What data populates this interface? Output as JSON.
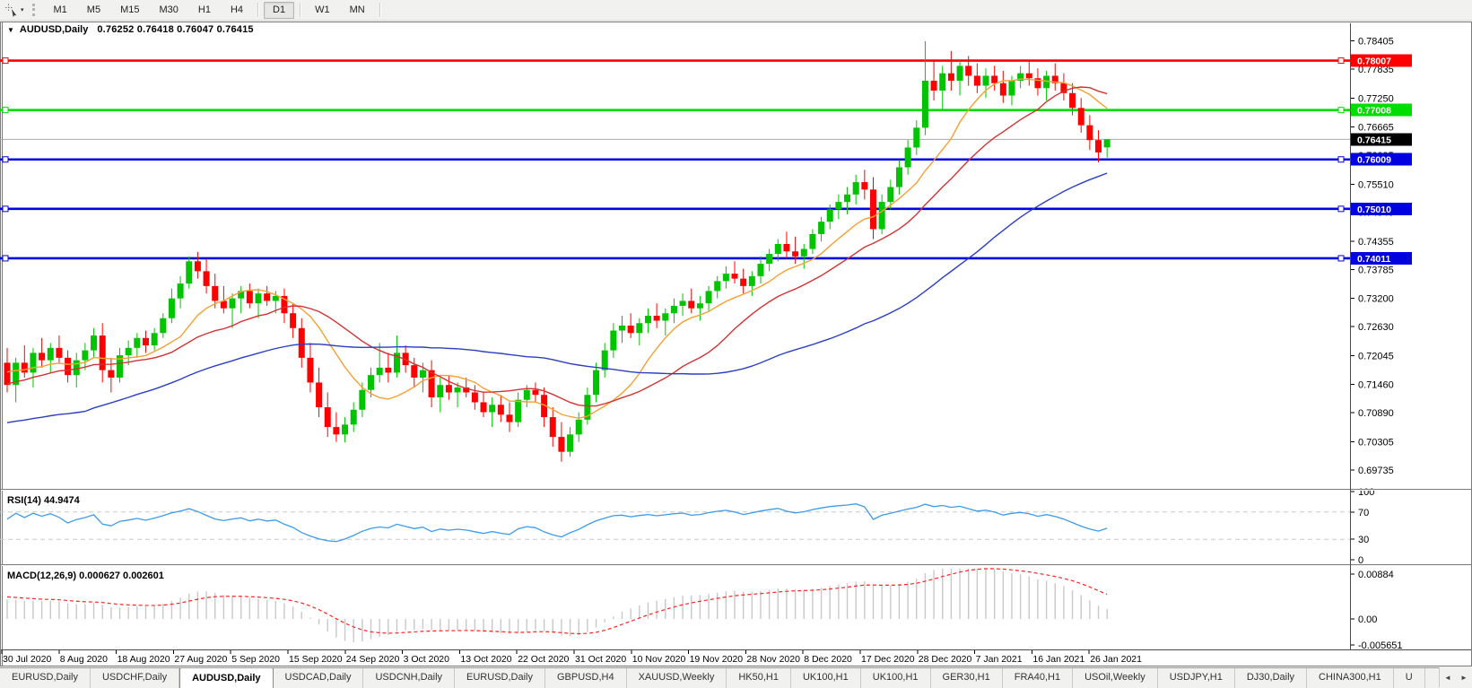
{
  "window": {
    "title_symbol": "AUDUSD,Daily",
    "title_ohlc": "0.76252 0.76418 0.76047 0.76415",
    "title_dropdown_icon": "▼"
  },
  "toolbar": {
    "cursor_tool_icon": "crosshair-cursor",
    "dropdown_icon": "▾",
    "timeframes": [
      "M1",
      "M5",
      "M15",
      "M30",
      "H1",
      "H4",
      "D1",
      "W1",
      "MN"
    ],
    "active_timeframe": "D1"
  },
  "chart_data": {
    "type": "candlestick",
    "symbol": "AUDUSD",
    "timeframe": "Daily",
    "ohlc_current": {
      "open": 0.76252,
      "high": 0.76418,
      "low": 0.76047,
      "close": 0.76415
    },
    "x_labels": [
      "30 Jul 2020",
      "8 Aug 2020",
      "18 Aug 2020",
      "27 Aug 2020",
      "5 Sep 2020",
      "15 Sep 2020",
      "24 Sep 2020",
      "3 Oct 2020",
      "13 Oct 2020",
      "22 Oct 2020",
      "31 Oct 2020",
      "10 Nov 2020",
      "19 Nov 2020",
      "28 Nov 2020",
      "8 Dec 2020",
      "17 Dec 2020",
      "28 Dec 2020",
      "7 Jan 2021",
      "16 Jan 2021",
      "26 Jan 2021"
    ],
    "y_axis": {
      "ticks": [
        0.78405,
        0.77835,
        0.7725,
        0.76665,
        0.76095,
        0.7551,
        0.7494,
        0.74355,
        0.73785,
        0.732,
        0.7263,
        0.72045,
        0.7146,
        0.7089,
        0.70305,
        0.69735
      ],
      "top": 0.7847,
      "bottom": 0.6955
    },
    "levels": [
      {
        "price": 0.78007,
        "color": "#ff0000"
      },
      {
        "price": 0.77008,
        "color": "#00dd00"
      },
      {
        "price": 0.76009,
        "color": "#0000e0"
      },
      {
        "price": 0.7501,
        "color": "#0000e0"
      },
      {
        "price": 0.74011,
        "color": "#0000e0"
      }
    ],
    "current_price": {
      "value": 0.76415,
      "line_color": "#aaaaaa",
      "label_bg": "#000000",
      "label_fg": "#ffffff"
    },
    "moving_averages": [
      {
        "name": "fast",
        "period": 10,
        "color": "#f5a033"
      },
      {
        "name": "mid",
        "period": 20,
        "color": "#d23333"
      },
      {
        "name": "slow",
        "period": 50,
        "color": "#2b3fc4"
      }
    ],
    "rsi": {
      "label": "RSI(14) 44.9474",
      "period": 14,
      "value": 44.9474,
      "axis": [
        100,
        70,
        30,
        0
      ],
      "levels": [
        70,
        30
      ],
      "color": "#3e9bea"
    },
    "macd": {
      "label": "MACD(12,26,9) 0.000627 0.002601",
      "fast": 12,
      "slow": 26,
      "signal": 9,
      "value": 0.000627,
      "signal_value": 0.002601,
      "axis": [
        {
          "label": "0.00884",
          "value": 0.00884
        },
        {
          "label": "0.00",
          "value": 0.0
        },
        {
          "label": "-0.005651",
          "value": -0.005651
        }
      ],
      "bar_color": "#c8c8c8",
      "signal_color": "#ff2222"
    },
    "style": {
      "bull": "#00c400",
      "bear": "#ff0000",
      "grid_dash": "#c8c8c8",
      "axis_line": "#4a4a4a",
      "frame": "#7b7b7b"
    },
    "warmup_closes": [
      0.69,
      0.6915,
      0.6905,
      0.693,
      0.6945,
      0.6938,
      0.696,
      0.6975,
      0.6968,
      0.699,
      0.7005,
      0.6998,
      0.702,
      0.7032,
      0.7025,
      0.7045,
      0.7058,
      0.705,
      0.707,
      0.7082,
      0.7075,
      0.7095,
      0.7105,
      0.7098,
      0.7115,
      0.7125,
      0.7118,
      0.7135,
      0.7145,
      0.7138,
      0.7152,
      0.716,
      0.7155,
      0.7168,
      0.7175,
      0.717,
      0.718,
      0.7188,
      0.7182,
      0.719
    ],
    "candles": [
      [
        0.719,
        0.722,
        0.713,
        0.7145
      ],
      [
        0.7145,
        0.72,
        0.711,
        0.719
      ],
      [
        0.719,
        0.7225,
        0.716,
        0.717
      ],
      [
        0.717,
        0.722,
        0.714,
        0.721
      ],
      [
        0.721,
        0.724,
        0.718,
        0.7195
      ],
      [
        0.7195,
        0.723,
        0.717,
        0.722
      ],
      [
        0.722,
        0.7245,
        0.719,
        0.72
      ],
      [
        0.72,
        0.7215,
        0.715,
        0.7165
      ],
      [
        0.7165,
        0.721,
        0.714,
        0.7195
      ],
      [
        0.7195,
        0.723,
        0.7175,
        0.7215
      ],
      [
        0.7215,
        0.726,
        0.72,
        0.7245
      ],
      [
        0.7245,
        0.727,
        0.715,
        0.7175
      ],
      [
        0.7175,
        0.72,
        0.713,
        0.716
      ],
      [
        0.716,
        0.722,
        0.715,
        0.7205
      ],
      [
        0.7205,
        0.7235,
        0.7185,
        0.722
      ],
      [
        0.722,
        0.725,
        0.72,
        0.724
      ],
      [
        0.724,
        0.7255,
        0.721,
        0.7225
      ],
      [
        0.7225,
        0.726,
        0.7215,
        0.725
      ],
      [
        0.725,
        0.729,
        0.724,
        0.728
      ],
      [
        0.728,
        0.734,
        0.727,
        0.732
      ],
      [
        0.732,
        0.7365,
        0.73,
        0.735
      ],
      [
        0.735,
        0.7405,
        0.734,
        0.7395
      ],
      [
        0.7395,
        0.7414,
        0.736,
        0.7375
      ],
      [
        0.7375,
        0.74,
        0.733,
        0.7345
      ],
      [
        0.7345,
        0.737,
        0.73,
        0.7315
      ],
      [
        0.7315,
        0.7345,
        0.729,
        0.73
      ],
      [
        0.73,
        0.733,
        0.726,
        0.732
      ],
      [
        0.732,
        0.7345,
        0.729,
        0.7335
      ],
      [
        0.7335,
        0.735,
        0.73,
        0.731
      ],
      [
        0.731,
        0.734,
        0.728,
        0.733
      ],
      [
        0.733,
        0.7345,
        0.7305,
        0.7315
      ],
      [
        0.7315,
        0.7335,
        0.729,
        0.7325
      ],
      [
        0.7325,
        0.734,
        0.727,
        0.729
      ],
      [
        0.729,
        0.731,
        0.724,
        0.726
      ],
      [
        0.726,
        0.728,
        0.718,
        0.72
      ],
      [
        0.72,
        0.723,
        0.713,
        0.715
      ],
      [
        0.715,
        0.718,
        0.708,
        0.71
      ],
      [
        0.71,
        0.713,
        0.704,
        0.706
      ],
      [
        0.706,
        0.709,
        0.703,
        0.7045
      ],
      [
        0.7045,
        0.708,
        0.7029,
        0.7065
      ],
      [
        0.7065,
        0.711,
        0.705,
        0.7095
      ],
      [
        0.7095,
        0.715,
        0.708,
        0.7135
      ],
      [
        0.7135,
        0.718,
        0.712,
        0.7165
      ],
      [
        0.7165,
        0.723,
        0.715,
        0.718
      ],
      [
        0.718,
        0.721,
        0.715,
        0.717
      ],
      [
        0.717,
        0.7245,
        0.716,
        0.721
      ],
      [
        0.721,
        0.7225,
        0.717,
        0.7185
      ],
      [
        0.7185,
        0.72,
        0.714,
        0.716
      ],
      [
        0.716,
        0.719,
        0.713,
        0.7175
      ],
      [
        0.7175,
        0.7195,
        0.71,
        0.712
      ],
      [
        0.712,
        0.716,
        0.709,
        0.7145
      ],
      [
        0.7145,
        0.7165,
        0.7115,
        0.713
      ],
      [
        0.713,
        0.715,
        0.71,
        0.714
      ],
      [
        0.714,
        0.716,
        0.712,
        0.713
      ],
      [
        0.713,
        0.7145,
        0.7095,
        0.711
      ],
      [
        0.711,
        0.713,
        0.708,
        0.709
      ],
      [
        0.709,
        0.712,
        0.706,
        0.7105
      ],
      [
        0.7105,
        0.7125,
        0.707,
        0.7085
      ],
      [
        0.7085,
        0.711,
        0.705,
        0.707
      ],
      [
        0.707,
        0.713,
        0.706,
        0.7115
      ],
      [
        0.7115,
        0.7145,
        0.71,
        0.7135
      ],
      [
        0.7135,
        0.715,
        0.711,
        0.7125
      ],
      [
        0.7125,
        0.714,
        0.706,
        0.708
      ],
      [
        0.708,
        0.71,
        0.702,
        0.704
      ],
      [
        0.704,
        0.707,
        0.699,
        0.701
      ],
      [
        0.701,
        0.706,
        0.7,
        0.7045
      ],
      [
        0.7045,
        0.709,
        0.703,
        0.7075
      ],
      [
        0.7075,
        0.714,
        0.7065,
        0.7125
      ],
      [
        0.7125,
        0.719,
        0.711,
        0.7175
      ],
      [
        0.7175,
        0.723,
        0.716,
        0.7215
      ],
      [
        0.7215,
        0.727,
        0.72,
        0.7255
      ],
      [
        0.7255,
        0.7285,
        0.723,
        0.7265
      ],
      [
        0.7265,
        0.729,
        0.724,
        0.725
      ],
      [
        0.725,
        0.728,
        0.7225,
        0.727
      ],
      [
        0.727,
        0.73,
        0.725,
        0.7285
      ],
      [
        0.7285,
        0.731,
        0.726,
        0.7275
      ],
      [
        0.7275,
        0.73,
        0.7245,
        0.729
      ],
      [
        0.729,
        0.732,
        0.727,
        0.7305
      ],
      [
        0.7305,
        0.733,
        0.7285,
        0.7315
      ],
      [
        0.7315,
        0.734,
        0.729,
        0.73
      ],
      [
        0.73,
        0.7325,
        0.7275,
        0.731
      ],
      [
        0.731,
        0.7345,
        0.7295,
        0.7335
      ],
      [
        0.7335,
        0.7365,
        0.732,
        0.7355
      ],
      [
        0.7355,
        0.7385,
        0.734,
        0.737
      ],
      [
        0.737,
        0.7395,
        0.735,
        0.736
      ],
      [
        0.736,
        0.738,
        0.733,
        0.7345
      ],
      [
        0.7345,
        0.7375,
        0.7325,
        0.7365
      ],
      [
        0.7365,
        0.7405,
        0.735,
        0.739
      ],
      [
        0.739,
        0.742,
        0.7375,
        0.741
      ],
      [
        0.741,
        0.744,
        0.7395,
        0.743
      ],
      [
        0.743,
        0.7455,
        0.74,
        0.7415
      ],
      [
        0.7415,
        0.7445,
        0.739,
        0.7405
      ],
      [
        0.7405,
        0.743,
        0.738,
        0.742
      ],
      [
        0.742,
        0.746,
        0.741,
        0.745
      ],
      [
        0.745,
        0.7485,
        0.7435,
        0.7475
      ],
      [
        0.7475,
        0.751,
        0.746,
        0.75
      ],
      [
        0.75,
        0.753,
        0.748,
        0.7515
      ],
      [
        0.7515,
        0.7545,
        0.749,
        0.753
      ],
      [
        0.753,
        0.757,
        0.751,
        0.7555
      ],
      [
        0.7555,
        0.758,
        0.752,
        0.754
      ],
      [
        0.754,
        0.7565,
        0.744,
        0.746
      ],
      [
        0.746,
        0.753,
        0.745,
        0.7515
      ],
      [
        0.7515,
        0.756,
        0.75,
        0.7545
      ],
      [
        0.7545,
        0.76,
        0.753,
        0.7585
      ],
      [
        0.7585,
        0.764,
        0.757,
        0.7625
      ],
      [
        0.7625,
        0.768,
        0.761,
        0.7665
      ],
      [
        0.7665,
        0.784,
        0.765,
        0.776
      ],
      [
        0.776,
        0.78,
        0.772,
        0.774
      ],
      [
        0.774,
        0.779,
        0.77,
        0.7775
      ],
      [
        0.7775,
        0.782,
        0.774,
        0.776
      ],
      [
        0.776,
        0.78,
        0.773,
        0.779
      ],
      [
        0.779,
        0.781,
        0.775,
        0.777
      ],
      [
        0.777,
        0.7795,
        0.7735,
        0.775
      ],
      [
        0.775,
        0.7785,
        0.7725,
        0.777
      ],
      [
        0.777,
        0.779,
        0.774,
        0.7755
      ],
      [
        0.7755,
        0.778,
        0.7715,
        0.773
      ],
      [
        0.773,
        0.777,
        0.771,
        0.776
      ],
      [
        0.776,
        0.779,
        0.7745,
        0.7775
      ],
      [
        0.7775,
        0.78,
        0.775,
        0.7765
      ],
      [
        0.7765,
        0.7785,
        0.773,
        0.7745
      ],
      [
        0.7745,
        0.778,
        0.772,
        0.777
      ],
      [
        0.777,
        0.7795,
        0.774,
        0.7755
      ],
      [
        0.7755,
        0.7775,
        0.772,
        0.7735
      ],
      [
        0.7735,
        0.7755,
        0.769,
        0.7705
      ],
      [
        0.7705,
        0.7725,
        0.7655,
        0.767
      ],
      [
        0.767,
        0.769,
        0.762,
        0.764
      ],
      [
        0.764,
        0.766,
        0.7595,
        0.7615
      ],
      [
        0.76252,
        0.76418,
        0.76047,
        0.76415
      ]
    ]
  },
  "tabs": {
    "scroll_left": "◄",
    "scroll_right": "►",
    "items": [
      {
        "label": "EURUSD,Daily",
        "active": false
      },
      {
        "label": "USDCHF,Daily",
        "active": false
      },
      {
        "label": "AUDUSD,Daily",
        "active": true
      },
      {
        "label": "USDCAD,Daily",
        "active": false
      },
      {
        "label": "USDCNH,Daily",
        "active": false
      },
      {
        "label": "EURUSD,Daily",
        "active": false
      },
      {
        "label": "GBPUSD,H4",
        "active": false
      },
      {
        "label": "XAUUSD,Weekly",
        "active": false
      },
      {
        "label": "HK50,H1",
        "active": false
      },
      {
        "label": "UK100,H1",
        "active": false
      },
      {
        "label": "UK100,H1",
        "active": false
      },
      {
        "label": "GER30,H1",
        "active": false
      },
      {
        "label": "FRA40,H1",
        "active": false
      },
      {
        "label": "USOil,Weekly",
        "active": false
      },
      {
        "label": "USDJPY,H1",
        "active": false
      },
      {
        "label": "DJ30,Daily",
        "active": false
      },
      {
        "label": "CHINA300,H1",
        "active": false
      },
      {
        "label": "U",
        "active": false
      }
    ]
  }
}
